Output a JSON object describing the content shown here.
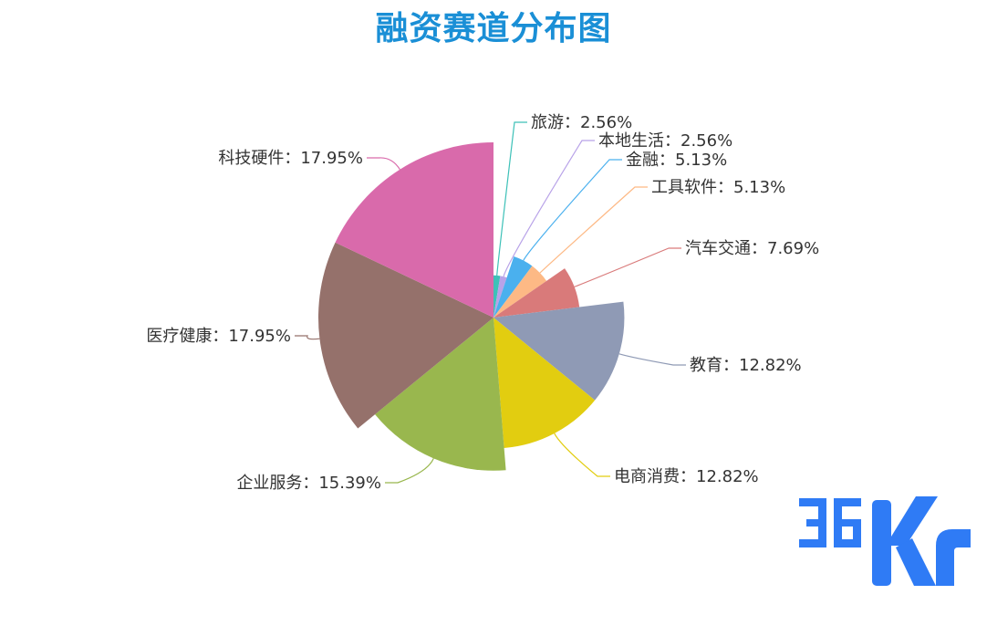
{
  "chart_data": {
    "type": "pie",
    "variant": "rose",
    "title": "融资赛道分布图",
    "separator": "：",
    "slices": [
      {
        "label": "旅游",
        "value": 2.56,
        "color": "#3ec1b8"
      },
      {
        "label": "本地生活",
        "value": 2.56,
        "color": "#b8a2e8"
      },
      {
        "label": "金融",
        "value": 5.13,
        "color": "#4ab0ee"
      },
      {
        "label": "工具软件",
        "value": 5.13,
        "color": "#fdb985"
      },
      {
        "label": "汽车交通",
        "value": 7.69,
        "color": "#d97a7a"
      },
      {
        "label": "教育",
        "value": 12.82,
        "color": "#8f9ab5"
      },
      {
        "label": "电商消费",
        "value": 12.82,
        "color": "#e2cd10"
      },
      {
        "label": "企业服务",
        "value": 15.39,
        "color": "#99b74e"
      },
      {
        "label": "医疗健康",
        "value": 17.95,
        "color": "#95716b"
      },
      {
        "label": "科技硬件",
        "value": 17.95,
        "color": "#d96aab"
      }
    ]
  },
  "brand": {
    "logo_text": "36Kr",
    "color": "#2f7bf5"
  }
}
